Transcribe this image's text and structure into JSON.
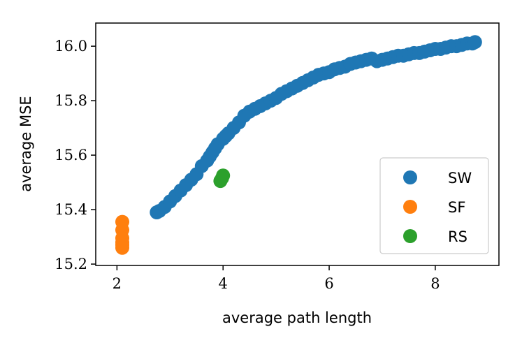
{
  "chart_data": {
    "type": "scatter",
    "xlabel": "average path length",
    "ylabel": "average MSE",
    "xlim": [
      1.6,
      9.2
    ],
    "ylim": [
      15.195,
      16.085
    ],
    "x_ticks": [
      2,
      4,
      6,
      8
    ],
    "y_ticks": [
      15.2,
      15.4,
      15.6,
      15.8,
      16.0
    ],
    "x_tick_labels": [
      "2",
      "4",
      "6",
      "8"
    ],
    "y_tick_labels": [
      "15.2",
      "15.4",
      "15.6",
      "15.8",
      "16.0"
    ],
    "grid": false,
    "legend_position": "lower-right",
    "series": [
      {
        "name": "SW",
        "color": "#1f77b4",
        "x": [
          2.75,
          2.8,
          2.9,
          3.0,
          3.1,
          3.2,
          3.3,
          3.4,
          3.5,
          3.6,
          3.7,
          3.75,
          3.8,
          3.85,
          3.9,
          4.0,
          4.05,
          4.1,
          4.2,
          4.3,
          4.4,
          4.5,
          4.6,
          4.7,
          4.8,
          4.9,
          5.0,
          5.1,
          5.2,
          5.3,
          5.4,
          5.5,
          5.6,
          5.7,
          5.8,
          5.9,
          6.0,
          6.1,
          6.2,
          6.3,
          6.4,
          6.5,
          6.6,
          6.7,
          6.8,
          6.9,
          7.0,
          7.1,
          7.2,
          7.3,
          7.4,
          7.5,
          7.6,
          7.7,
          7.8,
          7.9,
          8.0,
          8.1,
          8.2,
          8.3,
          8.4,
          8.5,
          8.6,
          8.7,
          8.75
        ],
        "y": [
          15.39,
          15.395,
          15.41,
          15.43,
          15.45,
          15.47,
          15.49,
          15.51,
          15.53,
          15.56,
          15.58,
          15.595,
          15.61,
          15.625,
          15.64,
          15.66,
          15.67,
          15.68,
          15.7,
          15.72,
          15.745,
          15.76,
          15.77,
          15.78,
          15.79,
          15.8,
          15.81,
          15.825,
          15.835,
          15.845,
          15.855,
          15.865,
          15.875,
          15.885,
          15.895,
          15.9,
          15.905,
          15.915,
          15.92,
          15.925,
          15.935,
          15.94,
          15.945,
          15.95,
          15.955,
          15.945,
          15.95,
          15.955,
          15.96,
          15.965,
          15.965,
          15.97,
          15.975,
          15.975,
          15.98,
          15.985,
          15.99,
          15.99,
          15.995,
          16.0,
          16.0,
          16.005,
          16.01,
          16.01,
          16.015
        ]
      },
      {
        "name": "SF",
        "color": "#ff7f0e",
        "x": [
          2.1,
          2.1,
          2.1,
          2.1,
          2.1,
          2.1
        ],
        "y": [
          15.355,
          15.325,
          15.295,
          15.28,
          15.27,
          15.26
        ]
      },
      {
        "name": "RS",
        "color": "#2ca02c",
        "x": [
          3.95,
          3.98,
          4.0
        ],
        "y": [
          15.505,
          15.515,
          15.525
        ]
      }
    ]
  }
}
